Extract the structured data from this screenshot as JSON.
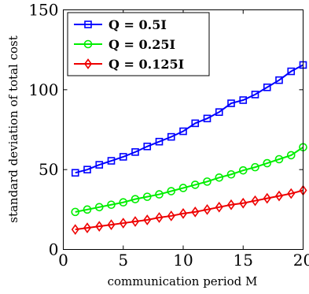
{
  "chart_data": {
    "type": "line",
    "xlabel": "communication period M",
    "ylabel": "standard deviation of total cost",
    "xlim": [
      0,
      20
    ],
    "ylim": [
      0,
      150
    ],
    "x_ticks": [
      "0",
      "5",
      "10",
      "15",
      "20"
    ],
    "y_ticks": [
      "0",
      "50",
      "100",
      "150"
    ],
    "x": [
      1,
      2,
      3,
      4,
      5,
      6,
      7,
      8,
      9,
      10,
      11,
      12,
      13,
      14,
      15,
      16,
      17,
      18,
      19,
      20
    ],
    "legend_position": "top-left",
    "series": [
      {
        "name": "Q = 0.5I",
        "color": "#0000ff",
        "marker": "square",
        "values": [
          48,
          50,
          53,
          55.5,
          58,
          61,
          64.5,
          67.5,
          70.5,
          74,
          79,
          82,
          86,
          91.5,
          93.5,
          97,
          101.5,
          106,
          111.5,
          115.5
        ]
      },
      {
        "name": "Q = 0.25I",
        "color": "#00ee00",
        "marker": "circle",
        "values": [
          23.5,
          25,
          26.5,
          28,
          29.5,
          31.5,
          33,
          34.5,
          36.5,
          38.5,
          40.5,
          42.5,
          45,
          47,
          49.5,
          51.5,
          54,
          56.5,
          59,
          64
        ]
      },
      {
        "name": "Q = 0.125I",
        "color": "#ee0000",
        "marker": "diamond",
        "values": [
          12.5,
          13.5,
          14.5,
          15.5,
          16.5,
          17.5,
          18.5,
          20,
          21,
          22.5,
          23.5,
          25,
          26.5,
          28,
          29,
          30.5,
          32,
          33.5,
          35,
          37
        ]
      }
    ]
  }
}
